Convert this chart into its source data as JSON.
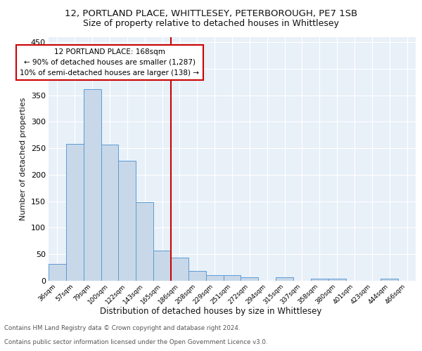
{
  "title1": "12, PORTLAND PLACE, WHITTLESEY, PETERBOROUGH, PE7 1SB",
  "title2": "Size of property relative to detached houses in Whittlesey",
  "xlabel": "Distribution of detached houses by size in Whittlesey",
  "ylabel": "Number of detached properties",
  "bin_labels": [
    "36sqm",
    "57sqm",
    "79sqm",
    "100sqm",
    "122sqm",
    "143sqm",
    "165sqm",
    "186sqm",
    "208sqm",
    "229sqm",
    "251sqm",
    "272sqm",
    "294sqm",
    "315sqm",
    "337sqm",
    "358sqm",
    "380sqm",
    "401sqm",
    "423sqm",
    "444sqm",
    "466sqm"
  ],
  "bar_values": [
    32,
    258,
    362,
    257,
    226,
    148,
    57,
    44,
    19,
    10,
    10,
    7,
    0,
    6,
    0,
    4,
    4,
    0,
    0,
    4,
    0
  ],
  "bar_color": "#c8d8e8",
  "bar_edge_color": "#5b9bd5",
  "vline_x": 6.5,
  "vline_color": "#cc0000",
  "annotation_text": "12 PORTLAND PLACE: 168sqm\n← 90% of detached houses are smaller (1,287)\n10% of semi-detached houses are larger (138) →",
  "annotation_box_color": "#ffffff",
  "annotation_box_edge": "#cc0000",
  "ylim": [
    0,
    460
  ],
  "yticks": [
    0,
    50,
    100,
    150,
    200,
    250,
    300,
    350,
    400,
    450
  ],
  "footer1": "Contains HM Land Registry data © Crown copyright and database right 2024.",
  "footer2": "Contains public sector information licensed under the Open Government Licence v3.0.",
  "plot_bg_color": "#e8f0f8"
}
